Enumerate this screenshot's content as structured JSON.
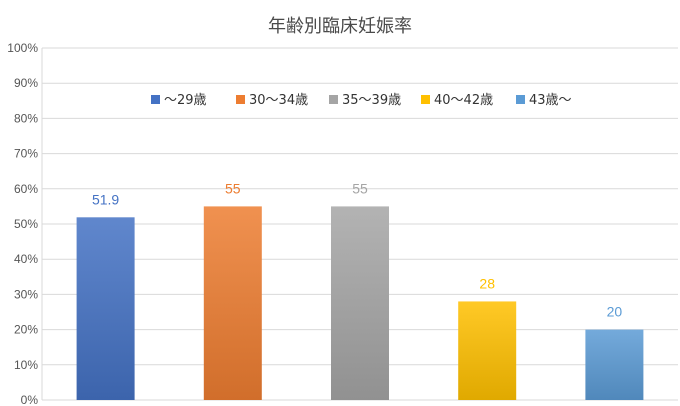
{
  "chart_data": {
    "type": "bar",
    "title": "年齢別臨床妊娠率",
    "xlabel": "",
    "ylabel": "",
    "ylim": [
      0,
      100
    ],
    "y_ticks": [
      "0%",
      "10%",
      "20%",
      "30%",
      "40%",
      "50%",
      "60%",
      "70%",
      "80%",
      "90%",
      "100%"
    ],
    "grid": true,
    "legend_position": "top",
    "categories": [
      "～29歳",
      "30～34歳",
      "35～39歳",
      "40～42歳",
      "43歳～"
    ],
    "values": [
      51.9,
      55,
      55,
      28,
      20
    ],
    "data_labels": [
      "51.9",
      "55",
      "55",
      "28",
      "20"
    ],
    "colors": [
      "#4472C4",
      "#ED7D31",
      "#A5A5A5",
      "#FFC000",
      "#5B9BD5"
    ]
  }
}
